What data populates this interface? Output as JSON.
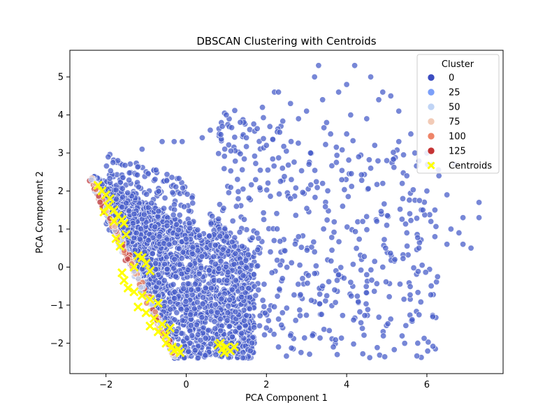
{
  "chart_data": {
    "type": "scatter",
    "title": "DBSCAN Clustering with Centroids",
    "xlabel": "PCA Component 1",
    "ylabel": "PCA Component 2",
    "xlim": [
      -2.9,
      7.9
    ],
    "ylim": [
      -2.8,
      5.7
    ],
    "xticks": [
      -2,
      0,
      2,
      4,
      6
    ],
    "yticks": [
      -2,
      -1,
      0,
      1,
      2,
      3,
      4,
      5
    ],
    "xtick_labels": [
      "−2",
      "0",
      "2",
      "4",
      "6"
    ],
    "ytick_labels": [
      "−2",
      "−1",
      "0",
      "1",
      "2",
      "3",
      "4",
      "5"
    ],
    "grid": false,
    "legend": {
      "title": "Cluster",
      "placement": "top-right",
      "entries": [
        {
          "label": "0",
          "color": "#3b4cc0",
          "marker": "circle"
        },
        {
          "label": "25",
          "color": "#7b9ff9",
          "marker": "circle"
        },
        {
          "label": "50",
          "color": "#c0d4f5",
          "marker": "circle"
        },
        {
          "label": "75",
          "color": "#f2cbb7",
          "marker": "circle"
        },
        {
          "label": "100",
          "color": "#ee8468",
          "marker": "circle"
        },
        {
          "label": "125",
          "color": "#c53334",
          "marker": "circle"
        },
        {
          "label": "Centroids",
          "color": "#ffff00",
          "marker": "x"
        }
      ]
    },
    "main_cluster_color": "#4a5fc9",
    "edge_band_colors": [
      "#b8c9ef",
      "#e8b6a0",
      "#e07a60",
      "#c23b3b"
    ],
    "centroid_color": "#ffff00",
    "sparse_points": [
      [
        3.3,
        5.3
      ],
      [
        4.2,
        5.3
      ],
      [
        4.6,
        5.0
      ],
      [
        3.2,
        5.0
      ],
      [
        2.2,
        4.6
      ],
      [
        2.3,
        4.6
      ],
      [
        5.1,
        4.5
      ],
      [
        5.3,
        4.1
      ],
      [
        4.8,
        4.4
      ],
      [
        3.4,
        4.4
      ],
      [
        2.6,
        4.3
      ],
      [
        1.9,
        4.2
      ],
      [
        3.0,
        4.1
      ],
      [
        2.8,
        3.9
      ],
      [
        4.1,
        4.0
      ],
      [
        4.5,
        3.9
      ],
      [
        5.7,
        3.0
      ],
      [
        6.0,
        3.0
      ],
      [
        6.7,
        2.7
      ],
      [
        7.3,
        1.7
      ],
      [
        7.3,
        1.3
      ],
      [
        6.9,
        0.6
      ],
      [
        7.1,
        0.5
      ],
      [
        6.5,
        0.6
      ],
      [
        6.2,
        0.8
      ],
      [
        5.8,
        0.5
      ],
      [
        5.5,
        0.9
      ],
      [
        5.2,
        0.2
      ],
      [
        4.9,
        0.0
      ],
      [
        4.5,
        -0.2
      ],
      [
        4.1,
        -0.4
      ],
      [
        3.7,
        -0.6
      ],
      [
        5.9,
        1.5
      ],
      [
        5.4,
        1.8
      ],
      [
        4.9,
        2.2
      ],
      [
        4.6,
        2.6
      ],
      [
        4.3,
        2.9
      ],
      [
        3.6,
        3.5
      ],
      [
        2.0,
        3.2
      ],
      [
        1.5,
        3.4
      ],
      [
        0.9,
        3.7
      ],
      [
        1.0,
        4.0
      ],
      [
        0.6,
        3.6
      ],
      [
        0.4,
        3.4
      ],
      [
        -0.1,
        3.3
      ],
      [
        -0.3,
        3.3
      ],
      [
        -0.6,
        3.3
      ],
      [
        -1.1,
        3.1
      ],
      [
        6.3,
        2.4
      ],
      [
        6.5,
        1.9
      ],
      [
        6.1,
        1.2
      ],
      [
        6.6,
        1.0
      ],
      [
        6.9,
        1.3
      ],
      [
        3.1,
        3.0
      ],
      [
        2.4,
        2.6
      ],
      [
        2.6,
        1.8
      ],
      [
        3.4,
        2.2
      ],
      [
        3.9,
        1.6
      ],
      [
        4.4,
        1.2
      ],
      [
        5.0,
        1.1
      ],
      [
        2.8,
        0.8
      ],
      [
        3.2,
        0.4
      ],
      [
        2.1,
        0.4
      ],
      [
        2.4,
        -0.3
      ],
      [
        1.8,
        -0.6
      ],
      [
        2.9,
        -0.3
      ],
      [
        3.4,
        -0.5
      ],
      [
        3.8,
        -0.2
      ],
      [
        2.4,
        -1.2
      ],
      [
        2.0,
        -1.6
      ],
      [
        2.6,
        -1.8
      ],
      [
        1.6,
        -2.2
      ],
      [
        1.3,
        -2.0
      ],
      [
        2.3,
        -2.1
      ],
      [
        6.0,
        2.0
      ],
      [
        5.5,
        2.4
      ],
      [
        5.0,
        2.8
      ],
      [
        4.7,
        3.2
      ],
      [
        4.0,
        3.5
      ],
      [
        3.5,
        3.8
      ],
      [
        3.8,
        4.6
      ],
      [
        4.9,
        4.6
      ],
      [
        4.0,
        4.8
      ],
      [
        5.6,
        3.5
      ],
      [
        5.3,
        3.3
      ],
      [
        6.2,
        1.5
      ],
      [
        6.8,
        0.9
      ]
    ],
    "centroid_points": [
      [
        -2.2,
        2.15
      ],
      [
        -2.1,
        2.0
      ],
      [
        -2.0,
        1.9
      ],
      [
        -1.9,
        1.8
      ],
      [
        -1.95,
        1.6
      ],
      [
        -1.8,
        1.5
      ],
      [
        -1.7,
        1.35
      ],
      [
        -1.6,
        1.25
      ],
      [
        -1.55,
        1.15
      ],
      [
        -1.8,
        1.2
      ],
      [
        -2.05,
        1.45
      ],
      [
        -1.75,
        0.75
      ],
      [
        -1.5,
        0.85
      ],
      [
        -1.65,
        0.55
      ],
      [
        -1.2,
        0.3
      ],
      [
        -1.1,
        0.25
      ],
      [
        -1.0,
        0.1
      ],
      [
        -1.3,
        0.0
      ],
      [
        -0.9,
        -0.1
      ],
      [
        -1.6,
        -0.15
      ],
      [
        -1.55,
        -0.35
      ],
      [
        -1.45,
        -0.55
      ],
      [
        -1.3,
        -0.65
      ],
      [
        -1.1,
        -0.75
      ],
      [
        -0.9,
        -0.85
      ],
      [
        -0.7,
        -0.95
      ],
      [
        -1.2,
        -1.05
      ],
      [
        -1.0,
        -1.2
      ],
      [
        -0.8,
        -1.35
      ],
      [
        -0.6,
        -1.5
      ],
      [
        -0.9,
        -1.55
      ],
      [
        -0.7,
        -1.7
      ],
      [
        -0.5,
        -1.8
      ],
      [
        -0.4,
        -1.6
      ],
      [
        -0.5,
        -2.0
      ],
      [
        -0.35,
        -2.1
      ],
      [
        -0.3,
        -2.2
      ],
      [
        -0.2,
        -2.15
      ],
      [
        -0.15,
        -2.25
      ],
      [
        0.8,
        -2.05
      ],
      [
        0.9,
        -2.15
      ],
      [
        1.0,
        -2.1
      ],
      [
        1.1,
        -2.2
      ],
      [
        1.2,
        -2.1
      ],
      [
        0.95,
        -2.25
      ],
      [
        0.85,
        -2.0
      ]
    ]
  }
}
